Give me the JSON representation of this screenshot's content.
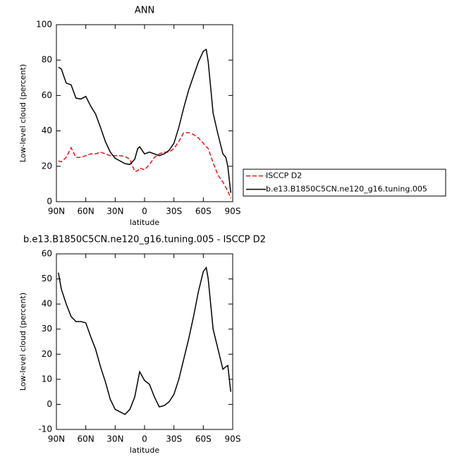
{
  "chart_data": [
    {
      "type": "line",
      "title": "ANN",
      "x_label": "latitude",
      "y_label": "Low-level cloud (percent)",
      "x": [
        88,
        85,
        80,
        75,
        70,
        65,
        60,
        55,
        50,
        45,
        40,
        35,
        30,
        25,
        20,
        15,
        10,
        7,
        5,
        0,
        -5,
        -10,
        -15,
        -20,
        -25,
        -30,
        -35,
        -40,
        -45,
        -50,
        -55,
        -60,
        -63,
        -65,
        -70,
        -75,
        -80,
        -83,
        -85,
        -88
      ],
      "xlim": [
        90,
        -90
      ],
      "xticks": [
        {
          "value": 90,
          "label": "90N"
        },
        {
          "value": 60,
          "label": "60N"
        },
        {
          "value": 30,
          "label": "30N"
        },
        0,
        {
          "value": -30,
          "label": "30S"
        },
        {
          "value": -60,
          "label": "60S"
        },
        {
          "value": -90,
          "label": "90S"
        }
      ],
      "ylim": [
        0,
        100
      ],
      "yticks": [
        0,
        20,
        40,
        60,
        80,
        100
      ],
      "legend": "right",
      "series": [
        {
          "name": "ISCCP D2",
          "color": "#e8141b",
          "line_style": "dashed",
          "values": [
            23,
            22.5,
            25,
            30.5,
            25,
            25,
            26,
            27,
            27,
            28,
            27,
            26,
            26,
            26,
            25.5,
            24,
            17,
            17.5,
            19,
            18,
            21,
            25,
            27,
            28,
            28,
            30,
            34,
            39,
            39,
            38,
            36,
            33,
            31,
            30,
            22,
            15,
            11,
            8,
            6,
            2
          ]
        },
        {
          "name": "b.e13.B1850C5CN.ne120_g16.tuning.005",
          "color": "#000000",
          "line_style": "solid",
          "values": [
            76,
            75,
            67,
            66,
            58.5,
            58,
            59.5,
            54,
            49.5,
            42,
            34,
            28,
            24.5,
            23,
            21.5,
            21,
            24,
            30,
            31,
            27,
            28,
            27,
            26,
            27,
            29,
            33,
            42,
            53,
            63,
            71,
            79,
            85,
            86,
            79,
            50,
            38,
            27,
            25,
            20,
            5
          ]
        }
      ]
    },
    {
      "type": "line",
      "title": "b.e13.B1850C5CN.ne120_g16.tuning.005 - ISCCP D2",
      "x_label": "latitude",
      "y_label": "Low-level cloud (percent)",
      "x": [
        88,
        85,
        80,
        75,
        70,
        65,
        60,
        55,
        50,
        45,
        40,
        35,
        30,
        25,
        20,
        15,
        10,
        7,
        5,
        0,
        -5,
        -10,
        -15,
        -20,
        -25,
        -30,
        -35,
        -40,
        -45,
        -50,
        -55,
        -60,
        -63,
        -65,
        -70,
        -75,
        -80,
        -83,
        -85,
        -88
      ],
      "xlim": [
        90,
        -90
      ],
      "xticks": [
        {
          "value": 90,
          "label": "90N"
        },
        {
          "value": 60,
          "label": "60N"
        },
        {
          "value": 30,
          "label": "30N"
        },
        0,
        {
          "value": -30,
          "label": "30S"
        },
        {
          "value": -60,
          "label": "60S"
        },
        {
          "value": -90,
          "label": "90S"
        }
      ],
      "ylim": [
        -10,
        60
      ],
      "yticks": [
        -10,
        0,
        10,
        20,
        30,
        40,
        50,
        60
      ],
      "series": [
        {
          "color": "#000000",
          "line_style": "solid",
          "values": [
            52.5,
            46,
            40,
            35,
            33,
            33,
            32.5,
            27,
            22,
            15,
            9,
            2,
            -2,
            -3,
            -4,
            -2,
            3,
            9,
            13,
            9.5,
            8,
            3,
            -1,
            -0.5,
            1,
            4,
            10,
            18,
            26,
            35,
            45,
            53,
            54.5,
            50,
            30,
            22,
            14,
            15,
            15.5,
            5
          ]
        }
      ]
    }
  ]
}
